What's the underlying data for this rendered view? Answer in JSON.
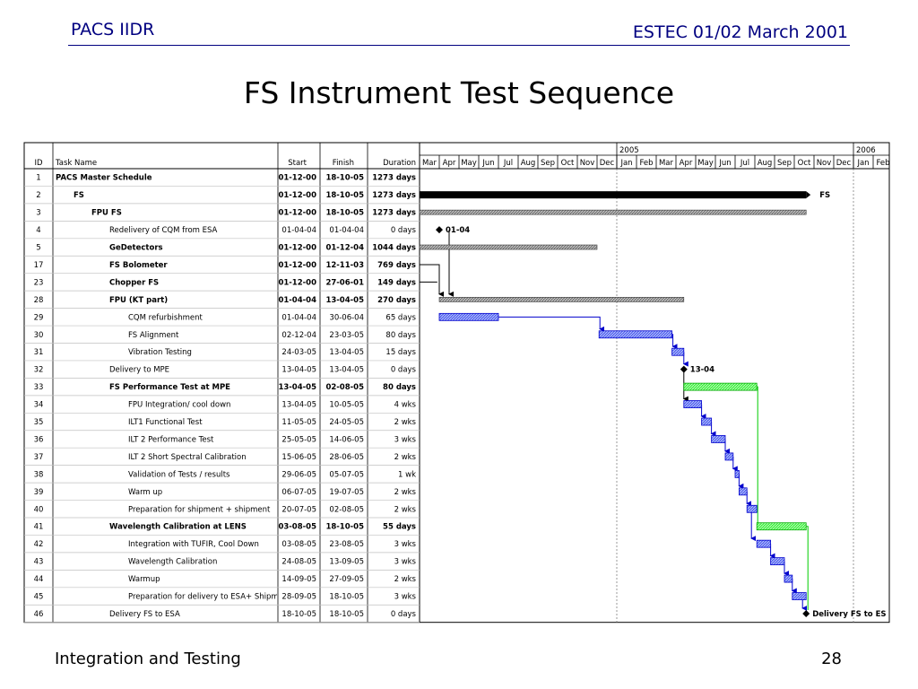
{
  "header": {
    "left": "PACS IIDR",
    "right": "ESTEC 01/02 March 2001"
  },
  "title": "FS Instrument Test Sequence",
  "footer": {
    "left": "Integration and Testing",
    "page": "28"
  },
  "table": {
    "columns": [
      "ID",
      "Task Name",
      "Start",
      "Finish",
      "Duration"
    ],
    "rows": [
      {
        "id": "1",
        "name": "PACS Master Schedule",
        "start": "01-12-00",
        "finish": "18-10-05",
        "duration": "1273 days",
        "bold": true,
        "indent": 0
      },
      {
        "id": "2",
        "name": "FS",
        "start": "01-12-00",
        "finish": "18-10-05",
        "duration": "1273 days",
        "bold": true,
        "indent": 1
      },
      {
        "id": "3",
        "name": "FPU FS",
        "start": "01-12-00",
        "finish": "18-10-05",
        "duration": "1273 days",
        "bold": true,
        "indent": 2
      },
      {
        "id": "4",
        "name": "Redelivery of CQM from ESA",
        "start": "01-04-04",
        "finish": "01-04-04",
        "duration": "0 days",
        "bold": false,
        "indent": 3
      },
      {
        "id": "5",
        "name": "GeDetectors",
        "start": "01-12-00",
        "finish": "01-12-04",
        "duration": "1044 days",
        "bold": true,
        "indent": 3
      },
      {
        "id": "17",
        "name": "FS Bolometer",
        "start": "01-12-00",
        "finish": "12-11-03",
        "duration": "769 days",
        "bold": true,
        "indent": 3
      },
      {
        "id": "23",
        "name": "Chopper FS",
        "start": "01-12-00",
        "finish": "27-06-01",
        "duration": "149 days",
        "bold": true,
        "indent": 3
      },
      {
        "id": "28",
        "name": "FPU  (KT part)",
        "start": "01-04-04",
        "finish": "13-04-05",
        "duration": "270 days",
        "bold": true,
        "indent": 3
      },
      {
        "id": "29",
        "name": "CQM refurbishment",
        "start": "01-04-04",
        "finish": "30-06-04",
        "duration": "65 days",
        "bold": false,
        "indent": 4
      },
      {
        "id": "30",
        "name": "FS Alignment",
        "start": "02-12-04",
        "finish": "23-03-05",
        "duration": "80 days",
        "bold": false,
        "indent": 4
      },
      {
        "id": "31",
        "name": "Vibration Testing",
        "start": "24-03-05",
        "finish": "13-04-05",
        "duration": "15 days",
        "bold": false,
        "indent": 4
      },
      {
        "id": "32",
        "name": "Delivery to MPE",
        "start": "13-04-05",
        "finish": "13-04-05",
        "duration": "0 days",
        "bold": false,
        "indent": 3
      },
      {
        "id": "33",
        "name": "FS Performance Test at MPE",
        "start": "13-04-05",
        "finish": "02-08-05",
        "duration": "80 days",
        "bold": true,
        "indent": 3
      },
      {
        "id": "34",
        "name": "FPU Integration/ cool down",
        "start": "13-04-05",
        "finish": "10-05-05",
        "duration": "4 wks",
        "bold": false,
        "indent": 4
      },
      {
        "id": "35",
        "name": "ILT1 Functional Test",
        "start": "11-05-05",
        "finish": "24-05-05",
        "duration": "2 wks",
        "bold": false,
        "indent": 4
      },
      {
        "id": "36",
        "name": "ILT 2 Performance Test",
        "start": "25-05-05",
        "finish": "14-06-05",
        "duration": "3 wks",
        "bold": false,
        "indent": 4
      },
      {
        "id": "37",
        "name": "ILT 2 Short Spectral Calibration",
        "start": "15-06-05",
        "finish": "28-06-05",
        "duration": "2 wks",
        "bold": false,
        "indent": 4
      },
      {
        "id": "38",
        "name": "Validation of Tests / results",
        "start": "29-06-05",
        "finish": "05-07-05",
        "duration": "1 wk",
        "bold": false,
        "indent": 4
      },
      {
        "id": "39",
        "name": "Warm up",
        "start": "06-07-05",
        "finish": "19-07-05",
        "duration": "2 wks",
        "bold": false,
        "indent": 4
      },
      {
        "id": "40",
        "name": "Preparation for shipment + shipment",
        "start": "20-07-05",
        "finish": "02-08-05",
        "duration": "2 wks",
        "bold": false,
        "indent": 4
      },
      {
        "id": "41",
        "name": "Wavelength Calibration at LENS",
        "start": "03-08-05",
        "finish": "18-10-05",
        "duration": "55 days",
        "bold": true,
        "indent": 3
      },
      {
        "id": "42",
        "name": "Integration with TUFIR, Cool Down",
        "start": "03-08-05",
        "finish": "23-08-05",
        "duration": "3 wks",
        "bold": false,
        "indent": 4
      },
      {
        "id": "43",
        "name": "Wavelength Calibration",
        "start": "24-08-05",
        "finish": "13-09-05",
        "duration": "3 wks",
        "bold": false,
        "indent": 4
      },
      {
        "id": "44",
        "name": "Warmup",
        "start": "14-09-05",
        "finish": "27-09-05",
        "duration": "2 wks",
        "bold": false,
        "indent": 4
      },
      {
        "id": "45",
        "name": "Preparation for delivery to ESA+ Shipment",
        "start": "28-09-05",
        "finish": "18-10-05",
        "duration": "3 wks",
        "bold": false,
        "indent": 4
      },
      {
        "id": "46",
        "name": "Delivery FS  to ESA",
        "start": "18-10-05",
        "finish": "18-10-05",
        "duration": "0 days",
        "bold": false,
        "indent": 3
      }
    ]
  },
  "timescale": {
    "years": [
      {
        "label": "2005",
        "month_index": 10
      },
      {
        "label": "2006",
        "month_index": 22
      }
    ],
    "months": [
      "Mar",
      "Apr",
      "May",
      "Jun",
      "Jul",
      "Aug",
      "Sep",
      "Oct",
      "Nov",
      "Dec",
      "Jan",
      "Feb",
      "Mar",
      "Apr",
      "May",
      "Jun",
      "Jul",
      "Aug",
      "Sep",
      "Oct",
      "Nov",
      "Dec",
      "Jan",
      "Feb"
    ]
  },
  "bars": [
    {
      "row": 1,
      "type": "summary-black",
      "start_month": 0,
      "end_month": 19.6,
      "label": "FS"
    },
    {
      "row": 2,
      "type": "summary-gray",
      "start_month": 0,
      "end_month": 19.6
    },
    {
      "row": 3,
      "type": "milestone",
      "start_month": 1,
      "label": "01-04"
    },
    {
      "row": 4,
      "type": "summary-gray",
      "start_month": 0,
      "end_month": 9.0
    },
    {
      "row": 7,
      "type": "summary-gray",
      "start_month": 1,
      "end_month": 13.4
    },
    {
      "row": 8,
      "type": "task-blue",
      "start_month": 1,
      "end_month": 4.0
    },
    {
      "row": 9,
      "type": "task-blue",
      "start_month": 9.1,
      "end_month": 12.8
    },
    {
      "row": 10,
      "type": "task-blue",
      "start_month": 12.8,
      "end_month": 13.4
    },
    {
      "row": 11,
      "type": "milestone",
      "start_month": 13.4,
      "label": "13-04"
    },
    {
      "row": 12,
      "type": "summary-green",
      "start_month": 13.4,
      "end_month": 17.1
    },
    {
      "row": 13,
      "type": "task-blue",
      "start_month": 13.4,
      "end_month": 14.3
    },
    {
      "row": 14,
      "type": "task-blue",
      "start_month": 14.3,
      "end_month": 14.8
    },
    {
      "row": 15,
      "type": "task-blue",
      "start_month": 14.8,
      "end_month": 15.5
    },
    {
      "row": 16,
      "type": "task-blue",
      "start_month": 15.5,
      "end_month": 15.9
    },
    {
      "row": 17,
      "type": "task-blue",
      "start_month": 16.0,
      "end_month": 16.2
    },
    {
      "row": 18,
      "type": "task-blue",
      "start_month": 16.2,
      "end_month": 16.6
    },
    {
      "row": 19,
      "type": "task-blue",
      "start_month": 16.6,
      "end_month": 17.1
    },
    {
      "row": 20,
      "type": "summary-green",
      "start_month": 17.1,
      "end_month": 19.6
    },
    {
      "row": 21,
      "type": "task-blue",
      "start_month": 17.1,
      "end_month": 17.8
    },
    {
      "row": 22,
      "type": "task-blue",
      "start_month": 17.8,
      "end_month": 18.5
    },
    {
      "row": 23,
      "type": "task-blue",
      "start_month": 18.5,
      "end_month": 18.9
    },
    {
      "row": 24,
      "type": "task-blue",
      "start_month": 18.9,
      "end_month": 19.6
    },
    {
      "row": 25,
      "type": "milestone",
      "start_month": 19.6,
      "label": "Delivery FS  to ES"
    }
  ],
  "colors": {
    "grid": "#808080",
    "task_fill": "#6677ee",
    "task_stroke": "#0000cc",
    "summary_green": "#66ff66",
    "summary_gray": "#888888",
    "link_blue": "#0000cc",
    "link_green": "#00cc00",
    "header_text": "#000080"
  }
}
